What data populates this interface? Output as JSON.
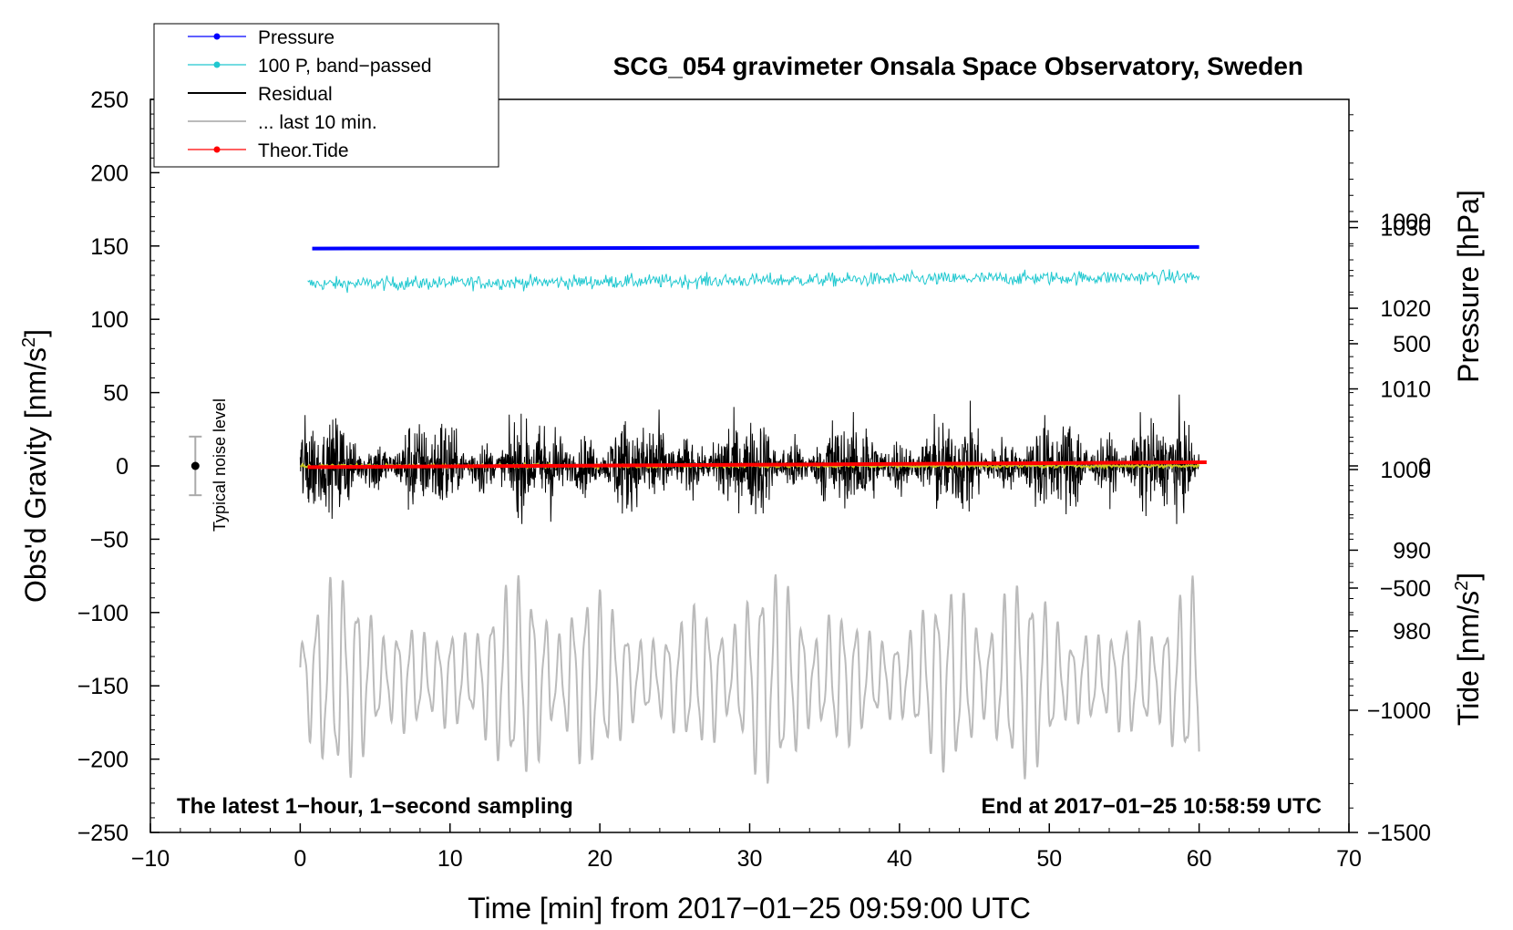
{
  "chart_data": {
    "type": "line",
    "title": "SCG_054 gravimeter Onsala Space Observatory, Sweden",
    "xlabel": "Time [min] from 2017−01−25 09:59:00 UTC",
    "ylabel_left": "Obs'd Gravity [nm/s",
    "ylabel_left_sup": "2",
    "ylabel_left_close": "]",
    "ylabel_right_pressure": "Pressure [hPa]",
    "ylabel_right_tide": "Tide [nm/s",
    "ylabel_right_tide_sup": "2",
    "ylabel_right_tide_close": "]",
    "xlim": [
      -10,
      70
    ],
    "ylim": [
      -250,
      250
    ],
    "pressure_lim": [
      955,
      1045.9
    ],
    "tide_lim": [
      -1500,
      1500
    ],
    "x_ticks": [
      -10,
      0,
      10,
      20,
      30,
      40,
      50,
      60,
      70
    ],
    "y_ticks": [
      250,
      200,
      150,
      100,
      50,
      0,
      -50,
      -100,
      -150,
      -200,
      -250
    ],
    "pressure_ticks": [
      1030,
      1020,
      1010,
      1000,
      990,
      980
    ],
    "tide_ticks": [
      1000,
      500,
      0,
      -500,
      -1000,
      -1500
    ],
    "tick_labels": {
      "x": [
        "−10",
        "0",
        "10",
        "20",
        "30",
        "40",
        "50",
        "60",
        "70"
      ],
      "y": [
        "250",
        "200",
        "150",
        "100",
        "50",
        "0",
        "−50",
        "−100",
        "−150",
        "−200",
        "−250"
      ],
      "pressure": [
        "1030",
        "1020",
        "1010",
        "1000",
        "990",
        "980"
      ],
      "tide": [
        "1000",
        "500",
        "0",
        "−500",
        "−1000",
        "−1500"
      ]
    },
    "series": [
      {
        "name": "Pressure",
        "axis": "pressure",
        "color": "#0000ff",
        "x": [
          0.8,
          60
        ],
        "values": [
          1027.4,
          1027.6
        ]
      },
      {
        "name": "100 P, band−passed",
        "axis": "left",
        "color": "#20c8d0",
        "x_range": [
          0.5,
          60
        ],
        "baseline": [
          124,
          129
        ],
        "noise_amplitude": 5
      },
      {
        "name": "Residual",
        "axis": "left",
        "color": "#000000",
        "x_range": [
          0,
          60
        ],
        "baseline": 0,
        "noise_amplitude": 35
      },
      {
        "name": "... last 10 min.",
        "axis": "left",
        "color": "#bbbbbb",
        "x_range": [
          0,
          60
        ],
        "baseline": -145,
        "noise_amplitude": 45,
        "peak_range": [
          -225,
          -85
        ]
      },
      {
        "name": "Theor.Tide",
        "axis": "tide",
        "color": "#ff0000",
        "x": [
          0.5,
          60.5
        ],
        "values": [
          -5,
          15
        ]
      },
      {
        "name": "smoothed residual",
        "axis": "left",
        "color": "#c8c820",
        "x_range": [
          0,
          60
        ],
        "baseline": 0,
        "noise_amplitude": 2
      }
    ],
    "noise_level": {
      "label": "Typical noise level",
      "x": -7,
      "center": 0,
      "half_range": 20
    },
    "annotations": {
      "left": "The latest 1−hour, 1−second sampling",
      "right": "End at 2017−01−25 10:58:59 UTC"
    },
    "legend": {
      "placement": "top-left",
      "entries": [
        "Pressure",
        "100 P, band−passed",
        "Residual",
        "... last 10 min.",
        "Theor.Tide"
      ]
    }
  }
}
